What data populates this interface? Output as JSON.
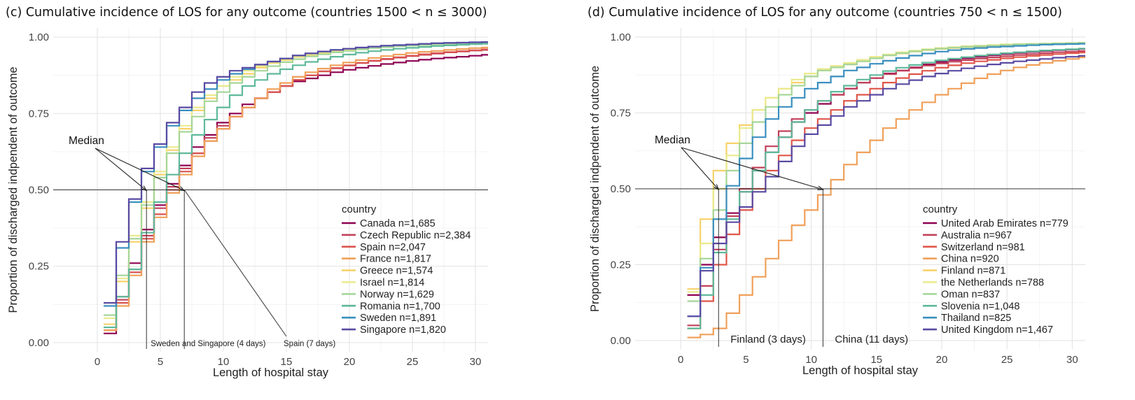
{
  "chart_data": [
    {
      "type": "line",
      "panel": "c",
      "title": "(c) Cumulative incidence of LOS for any outcome (countries 1500 < n ≤ 3000)",
      "xlabel": "Length of hospital stay",
      "ylabel": "Proportion of discharged indpendent of outcome",
      "xlim": [
        -3.5,
        31
      ],
      "ylim": [
        -0.03,
        1.03
      ],
      "xticks": [
        "0",
        "5",
        "10",
        "15",
        "20",
        "25",
        "30"
      ],
      "yticks": [
        "0.00",
        "0.25",
        "0.50",
        "0.75",
        "1.00"
      ],
      "grid": true,
      "legend_title": "country",
      "legend_position": "bottom-right",
      "reference_line": 0.5,
      "median_label": "Median",
      "annotations": [
        {
          "text": "Sweden and Singapore (4 days)",
          "x": 4
        },
        {
          "text": "Spain (7 days)",
          "x": 7
        }
      ],
      "x": [
        1,
        2,
        3,
        4,
        5,
        6,
        7,
        8,
        9,
        10,
        11,
        12,
        13,
        14,
        15,
        16,
        17,
        18,
        19,
        20,
        21,
        22,
        23,
        24,
        25,
        26,
        27,
        28,
        29,
        30,
        31
      ],
      "series": [
        {
          "name": "Canada n=1,685",
          "color": "#8e0152",
          "values": [
            0.03,
            0.15,
            0.26,
            0.37,
            0.45,
            0.52,
            0.58,
            0.64,
            0.68,
            0.72,
            0.75,
            0.78,
            0.8,
            0.82,
            0.84,
            0.855,
            0.865,
            0.875,
            0.885,
            0.893,
            0.9,
            0.906,
            0.912,
            0.917,
            0.922,
            0.926,
            0.93,
            0.933,
            0.936,
            0.939,
            0.942
          ]
        },
        {
          "name": "Czech Republic n=2,384",
          "color": "#c2405a",
          "values": [
            0.04,
            0.14,
            0.24,
            0.35,
            0.44,
            0.51,
            0.57,
            0.62,
            0.67,
            0.71,
            0.74,
            0.77,
            0.8,
            0.82,
            0.84,
            0.86,
            0.875,
            0.888,
            0.898,
            0.907,
            0.915,
            0.922,
            0.928,
            0.933,
            0.938,
            0.942,
            0.946,
            0.95,
            0.953,
            0.956,
            0.958
          ]
        },
        {
          "name": "Spain n=2,047",
          "color": "#d9534f",
          "values": [
            0.04,
            0.13,
            0.23,
            0.34,
            0.42,
            0.5,
            0.56,
            0.62,
            0.66,
            0.7,
            0.74,
            0.77,
            0.8,
            0.82,
            0.84,
            0.86,
            0.875,
            0.888,
            0.899,
            0.908,
            0.916,
            0.923,
            0.929,
            0.934,
            0.939,
            0.944,
            0.948,
            0.951,
            0.954,
            0.957,
            0.96
          ]
        },
        {
          "name": "France n=1,817",
          "color": "#f0a05a",
          "values": [
            0.04,
            0.12,
            0.22,
            0.33,
            0.41,
            0.49,
            0.55,
            0.61,
            0.66,
            0.7,
            0.74,
            0.77,
            0.8,
            0.83,
            0.85,
            0.87,
            0.885,
            0.897,
            0.908,
            0.917,
            0.925,
            0.932,
            0.938,
            0.943,
            0.948,
            0.952,
            0.955,
            0.958,
            0.961,
            0.964,
            0.966
          ]
        },
        {
          "name": "Greece n=1,574",
          "color": "#f7d26a",
          "values": [
            0.06,
            0.2,
            0.33,
            0.44,
            0.55,
            0.63,
            0.7,
            0.76,
            0.8,
            0.84,
            0.86,
            0.88,
            0.9,
            0.915,
            0.925,
            0.935,
            0.942,
            0.948,
            0.953,
            0.958,
            0.962,
            0.965,
            0.968,
            0.971,
            0.973,
            0.975,
            0.977,
            0.979,
            0.98,
            0.981,
            0.982
          ]
        },
        {
          "name": "Israel n=1,814",
          "color": "#eaea8c",
          "values": [
            0.08,
            0.21,
            0.35,
            0.46,
            0.56,
            0.64,
            0.71,
            0.77,
            0.81,
            0.84,
            0.87,
            0.89,
            0.905,
            0.918,
            0.928,
            0.937,
            0.944,
            0.95,
            0.955,
            0.96,
            0.963,
            0.966,
            0.969,
            0.971,
            0.973,
            0.975,
            0.977,
            0.978,
            0.979,
            0.98,
            0.981
          ]
        },
        {
          "name": "Norway n=1,629",
          "color": "#a6d69a",
          "values": [
            0.09,
            0.22,
            0.34,
            0.45,
            0.54,
            0.62,
            0.69,
            0.74,
            0.79,
            0.82,
            0.85,
            0.87,
            0.89,
            0.905,
            0.918,
            0.928,
            0.937,
            0.944,
            0.95,
            0.955,
            0.96,
            0.964,
            0.967,
            0.97,
            0.972,
            0.974,
            0.976,
            0.978,
            0.979,
            0.98,
            0.981
          ]
        },
        {
          "name": "Romania n=1,700",
          "color": "#5fb99a",
          "values": [
            0.05,
            0.15,
            0.24,
            0.36,
            0.46,
            0.55,
            0.62,
            0.68,
            0.73,
            0.77,
            0.81,
            0.84,
            0.86,
            0.88,
            0.895,
            0.908,
            0.919,
            0.928,
            0.936,
            0.943,
            0.949,
            0.954,
            0.958,
            0.962,
            0.965,
            0.968,
            0.971,
            0.973,
            0.975,
            0.977,
            0.978
          ]
        },
        {
          "name": "Sweden n=1,891",
          "color": "#3a8fc0",
          "values": [
            0.12,
            0.31,
            0.46,
            0.56,
            0.64,
            0.71,
            0.76,
            0.8,
            0.83,
            0.86,
            0.88,
            0.895,
            0.91,
            0.92,
            0.93,
            0.94,
            0.947,
            0.953,
            0.958,
            0.962,
            0.966,
            0.969,
            0.972,
            0.974,
            0.976,
            0.978,
            0.98,
            0.981,
            0.982,
            0.983,
            0.984
          ]
        },
        {
          "name": "Singapore n=1,820",
          "color": "#5a4aa3",
          "values": [
            0.13,
            0.33,
            0.47,
            0.57,
            0.65,
            0.72,
            0.77,
            0.82,
            0.85,
            0.87,
            0.89,
            0.9,
            0.91,
            0.92,
            0.93,
            0.94,
            0.947,
            0.953,
            0.958,
            0.962,
            0.966,
            0.969,
            0.972,
            0.974,
            0.976,
            0.978,
            0.98,
            0.981,
            0.982,
            0.983,
            0.984
          ]
        }
      ]
    },
    {
      "type": "line",
      "panel": "d",
      "title": "(d) Cumulative incidence of LOS for any outcome (countries 750 < n ≤ 1500)",
      "xlabel": "Length of hospital stay",
      "ylabel": "Proportion of discharged indpendent of outcome",
      "xlim": [
        -3.5,
        31
      ],
      "ylim": [
        -0.03,
        1.03
      ],
      "xticks": [
        "0",
        "5",
        "10",
        "15",
        "20",
        "25",
        "30"
      ],
      "yticks": [
        "0.00",
        "0.25",
        "0.50",
        "0.75",
        "1.00"
      ],
      "grid": true,
      "legend_title": "country",
      "legend_position": "bottom-right",
      "reference_line": 0.5,
      "median_label": "Median",
      "annotations": [
        {
          "text": "Finland (3 days)",
          "x": 3
        },
        {
          "text": "China (11 days)",
          "x": 11
        }
      ],
      "x": [
        1,
        2,
        3,
        4,
        5,
        6,
        7,
        8,
        9,
        10,
        11,
        12,
        13,
        14,
        15,
        16,
        17,
        18,
        19,
        20,
        21,
        22,
        23,
        24,
        25,
        26,
        27,
        28,
        29,
        30,
        31
      ],
      "series": [
        {
          "name": "United Arab Emirates n=779",
          "color": "#8e0152",
          "values": [
            0.15,
            0.25,
            0.34,
            0.42,
            0.49,
            0.56,
            0.62,
            0.67,
            0.72,
            0.75,
            0.78,
            0.81,
            0.83,
            0.85,
            0.865,
            0.88,
            0.89,
            0.9,
            0.91,
            0.918,
            0.925,
            0.93,
            0.935,
            0.94,
            0.944,
            0.948,
            0.951,
            0.954,
            0.957,
            0.959,
            0.961
          ]
        },
        {
          "name": "Australia n=967",
          "color": "#c2405a",
          "values": [
            0.05,
            0.18,
            0.3,
            0.41,
            0.5,
            0.57,
            0.64,
            0.69,
            0.73,
            0.76,
            0.79,
            0.81,
            0.83,
            0.85,
            0.865,
            0.878,
            0.889,
            0.898,
            0.906,
            0.913,
            0.919,
            0.924,
            0.929,
            0.933,
            0.937,
            0.941,
            0.944,
            0.947,
            0.95,
            0.952,
            0.954
          ]
        },
        {
          "name": "Switzerland n=981",
          "color": "#e0564a",
          "values": [
            0.04,
            0.13,
            0.25,
            0.35,
            0.43,
            0.5,
            0.56,
            0.61,
            0.66,
            0.7,
            0.73,
            0.76,
            0.79,
            0.81,
            0.83,
            0.85,
            0.865,
            0.878,
            0.889,
            0.899,
            0.907,
            0.914,
            0.92,
            0.925,
            0.93,
            0.934,
            0.938,
            0.941,
            0.944,
            0.947,
            0.949
          ]
        },
        {
          "name": "China n=920",
          "color": "#f0a05a",
          "values": [
            0.01,
            0.02,
            0.04,
            0.09,
            0.15,
            0.21,
            0.27,
            0.33,
            0.38,
            0.43,
            0.48,
            0.53,
            0.58,
            0.62,
            0.66,
            0.7,
            0.73,
            0.76,
            0.785,
            0.81,
            0.83,
            0.848,
            0.864,
            0.878,
            0.89,
            0.9,
            0.908,
            0.915,
            0.922,
            0.928,
            0.933
          ]
        },
        {
          "name": "Finland n=871",
          "color": "#f7d26a",
          "values": [
            0.17,
            0.4,
            0.56,
            0.65,
            0.71,
            0.76,
            0.8,
            0.83,
            0.85,
            0.87,
            0.89,
            0.9,
            0.91,
            0.92,
            0.93,
            0.94,
            0.946,
            0.952,
            0.957,
            0.961,
            0.964,
            0.967,
            0.969,
            0.971,
            0.973,
            0.975,
            0.976,
            0.977,
            0.978,
            0.979,
            0.98
          ]
        },
        {
          "name": "the Netherlands n=788",
          "color": "#eaea8c",
          "values": [
            0.16,
            0.32,
            0.5,
            0.61,
            0.7,
            0.76,
            0.8,
            0.83,
            0.86,
            0.88,
            0.895,
            0.905,
            0.915,
            0.925,
            0.935,
            0.943,
            0.95,
            0.955,
            0.96,
            0.964,
            0.967,
            0.97,
            0.972,
            0.974,
            0.976,
            0.977,
            0.978,
            0.979,
            0.98,
            0.981,
            0.982
          ]
        },
        {
          "name": "Oman n=837",
          "color": "#a6d69a",
          "values": [
            0.13,
            0.27,
            0.43,
            0.56,
            0.65,
            0.72,
            0.77,
            0.81,
            0.84,
            0.87,
            0.89,
            0.9,
            0.91,
            0.92,
            0.93,
            0.94,
            0.947,
            0.953,
            0.958,
            0.962,
            0.965,
            0.968,
            0.97,
            0.972,
            0.974,
            0.976,
            0.977,
            0.978,
            0.979,
            0.98,
            0.981
          ]
        },
        {
          "name": "Slovenia n=1,048",
          "color": "#5fb99a",
          "values": [
            0.04,
            0.15,
            0.29,
            0.4,
            0.49,
            0.56,
            0.62,
            0.67,
            0.72,
            0.76,
            0.79,
            0.82,
            0.84,
            0.86,
            0.875,
            0.888,
            0.899,
            0.908,
            0.916,
            0.923,
            0.929,
            0.934,
            0.939,
            0.943,
            0.947,
            0.95,
            0.953,
            0.956,
            0.958,
            0.96,
            0.962
          ]
        },
        {
          "name": "Thailand n=825",
          "color": "#3a8fc0",
          "values": [
            0.08,
            0.24,
            0.4,
            0.51,
            0.6,
            0.67,
            0.73,
            0.77,
            0.8,
            0.83,
            0.85,
            0.87,
            0.89,
            0.9,
            0.912,
            0.922,
            0.931,
            0.939,
            0.946,
            0.952,
            0.957,
            0.961,
            0.964,
            0.967,
            0.969,
            0.971,
            0.973,
            0.975,
            0.976,
            0.977,
            0.978
          ]
        },
        {
          "name": "United Kingdom n=1,467",
          "color": "#5a4aa3",
          "values": [
            0.08,
            0.23,
            0.32,
            0.39,
            0.44,
            0.49,
            0.54,
            0.59,
            0.64,
            0.68,
            0.71,
            0.74,
            0.77,
            0.79,
            0.81,
            0.83,
            0.845,
            0.858,
            0.87,
            0.88,
            0.889,
            0.897,
            0.904,
            0.91,
            0.915,
            0.92,
            0.924,
            0.928,
            0.932,
            0.935,
            0.938
          ]
        }
      ]
    }
  ]
}
